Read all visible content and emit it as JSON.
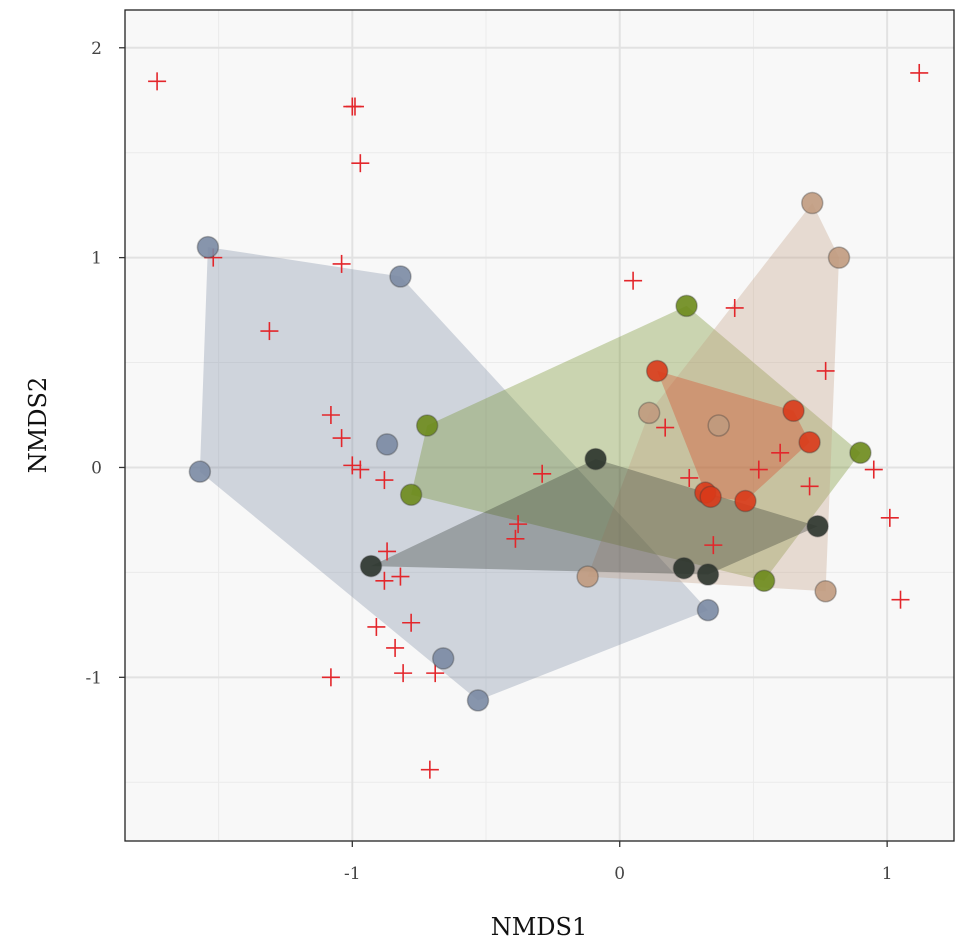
{
  "chart_data": {
    "type": "scatter",
    "xlabel": "NMDS1",
    "ylabel": "NMDS2",
    "xlim": [
      -1.85,
      1.25
    ],
    "ylim": [
      -1.78,
      2.18
    ],
    "x_ticks": [
      -1,
      0,
      1
    ],
    "x_tick_labels": [
      "-1",
      "0",
      "1"
    ],
    "y_ticks": [
      -1,
      0,
      1,
      2
    ],
    "y_tick_labels": [
      "-1",
      "0",
      "1",
      "2"
    ],
    "grid": true,
    "series": [
      {
        "color": "#7a8aa3",
        "hull": true,
        "points": [
          [
            -1.54,
            1.05
          ],
          [
            -0.82,
            0.91
          ],
          [
            -0.87,
            0.11
          ],
          [
            -1.57,
            -0.02
          ],
          [
            -0.66,
            -0.91
          ],
          [
            -0.53,
            -1.11
          ],
          [
            0.33,
            -0.68
          ]
        ]
      },
      {
        "color": "#6b8a1a",
        "hull": true,
        "points": [
          [
            0.25,
            0.77
          ],
          [
            -0.72,
            0.2
          ],
          [
            -0.78,
            -0.13
          ],
          [
            0.9,
            0.07
          ],
          [
            0.54,
            -0.54
          ]
        ]
      },
      {
        "color": "#c09a7e",
        "hull": true,
        "points": [
          [
            0.72,
            1.26
          ],
          [
            0.82,
            1.0
          ],
          [
            0.11,
            0.26
          ],
          [
            0.37,
            0.2
          ],
          [
            -0.12,
            -0.52
          ],
          [
            0.77,
            -0.59
          ]
        ]
      },
      {
        "color": "#2a332b",
        "hull": true,
        "points": [
          [
            -0.09,
            0.04
          ],
          [
            -0.93,
            -0.47
          ],
          [
            0.24,
            -0.48
          ],
          [
            0.33,
            -0.51
          ],
          [
            0.74,
            -0.28
          ]
        ]
      },
      {
        "color": "#d93a1a",
        "hull": true,
        "points": [
          [
            0.14,
            0.46
          ],
          [
            0.65,
            0.27
          ],
          [
            0.71,
            0.12
          ],
          [
            0.32,
            -0.12
          ],
          [
            0.34,
            -0.14
          ],
          [
            0.47,
            -0.16
          ]
        ]
      }
    ],
    "species_marker": "+",
    "species_color": "#e3262b",
    "species": [
      [
        -1.73,
        1.84
      ],
      [
        -1.0,
        1.72
      ],
      [
        -0.99,
        1.72
      ],
      [
        -0.97,
        1.45
      ],
      [
        1.12,
        1.88
      ],
      [
        -1.52,
        1.0
      ],
      [
        -1.04,
        0.97
      ],
      [
        -1.31,
        0.65
      ],
      [
        0.05,
        0.89
      ],
      [
        0.43,
        0.76
      ],
      [
        0.77,
        0.46
      ],
      [
        -1.08,
        0.25
      ],
      [
        -1.04,
        0.14
      ],
      [
        0.17,
        0.19
      ],
      [
        -1.0,
        0.01
      ],
      [
        -0.97,
        -0.01
      ],
      [
        -0.88,
        -0.06
      ],
      [
        -0.29,
        -0.03
      ],
      [
        0.26,
        -0.05
      ],
      [
        0.52,
        -0.01
      ],
      [
        0.6,
        0.07
      ],
      [
        0.95,
        -0.01
      ],
      [
        0.71,
        -0.09
      ],
      [
        1.01,
        -0.24
      ],
      [
        -0.38,
        -0.27
      ],
      [
        -0.39,
        -0.34
      ],
      [
        0.35,
        -0.37
      ],
      [
        -0.87,
        -0.4
      ],
      [
        -0.88,
        -0.54
      ],
      [
        -0.82,
        -0.52
      ],
      [
        1.05,
        -0.63
      ],
      [
        -0.91,
        -0.76
      ],
      [
        -0.78,
        -0.74
      ],
      [
        -0.84,
        -0.86
      ],
      [
        -0.81,
        -0.98
      ],
      [
        -1.08,
        -1.0
      ],
      [
        -0.69,
        -0.98
      ],
      [
        -0.71,
        -1.44
      ]
    ]
  }
}
